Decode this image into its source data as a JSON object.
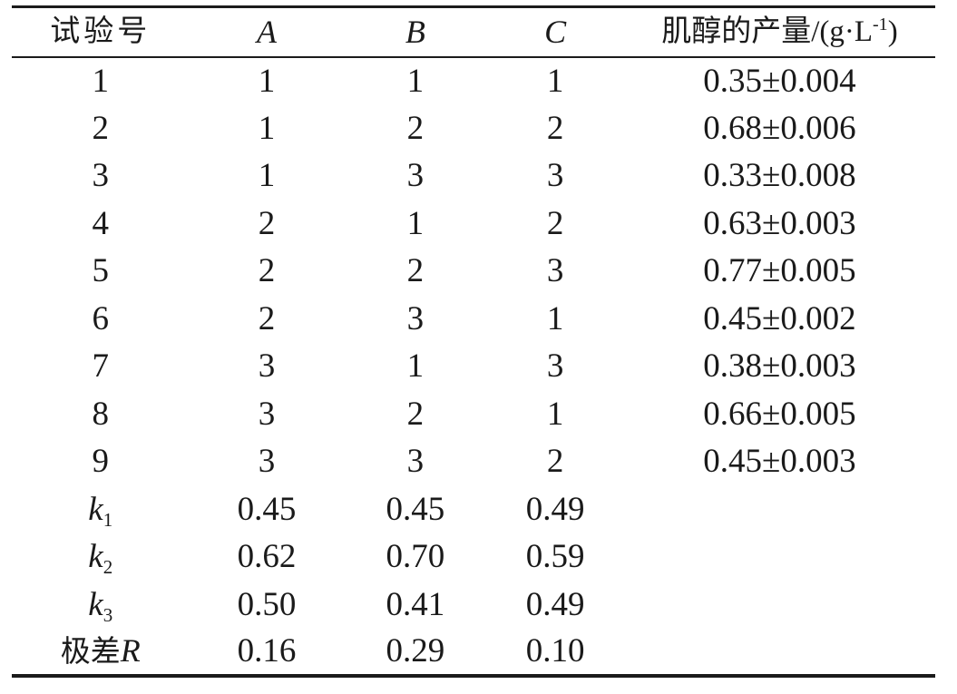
{
  "colors": {
    "background": "#ffffff",
    "text": "#1a1a1a",
    "rule": "#1b1b1b"
  },
  "table": {
    "header": {
      "trial": "试验号",
      "a": "A",
      "b": "B",
      "c": "C",
      "yield_prefix": "肌醇的产量/(g·L",
      "yield_sup": "-1",
      "yield_suffix": ")"
    },
    "rows": [
      {
        "no": "1",
        "a": "1",
        "b": "1",
        "c": "1",
        "yield": "0.35±0.004"
      },
      {
        "no": "2",
        "a": "1",
        "b": "2",
        "c": "2",
        "yield": "0.68±0.006"
      },
      {
        "no": "3",
        "a": "1",
        "b": "3",
        "c": "3",
        "yield": "0.33±0.008"
      },
      {
        "no": "4",
        "a": "2",
        "b": "1",
        "c": "2",
        "yield": "0.63±0.003"
      },
      {
        "no": "5",
        "a": "2",
        "b": "2",
        "c": "3",
        "yield": "0.77±0.005"
      },
      {
        "no": "6",
        "a": "2",
        "b": "3",
        "c": "1",
        "yield": "0.45±0.002"
      },
      {
        "no": "7",
        "a": "3",
        "b": "1",
        "c": "3",
        "yield": "0.38±0.003"
      },
      {
        "no": "8",
        "a": "3",
        "b": "2",
        "c": "1",
        "yield": "0.66±0.005"
      },
      {
        "no": "9",
        "a": "3",
        "b": "3",
        "c": "2",
        "yield": "0.45±0.003"
      }
    ],
    "stats": [
      {
        "base": "k",
        "sub": "1",
        "a": "0.45",
        "b": "0.45",
        "c": "0.49"
      },
      {
        "base": "k",
        "sub": "2",
        "a": "0.62",
        "b": "0.70",
        "c": "0.59"
      },
      {
        "base": "k",
        "sub": "3",
        "a": "0.50",
        "b": "0.41",
        "c": "0.49"
      }
    ],
    "range": {
      "label": "极差",
      "symbol": "R",
      "a": "0.16",
      "b": "0.29",
      "c": "0.10"
    }
  }
}
